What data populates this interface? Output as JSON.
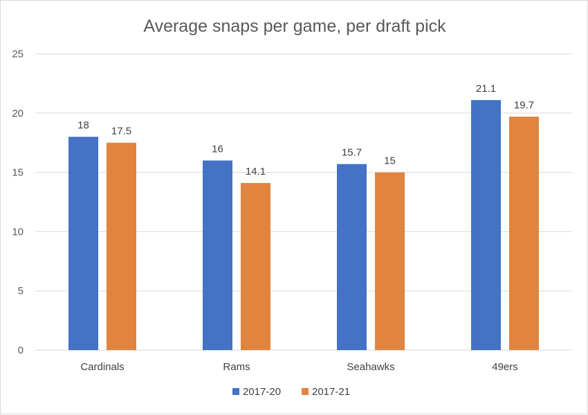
{
  "chart_data": {
    "type": "bar",
    "title": "Average snaps per game, per draft pick",
    "xlabel": "",
    "ylabel": "",
    "categories": [
      "Cardinals",
      "Rams",
      "Seahawks",
      "49ers"
    ],
    "series": [
      {
        "name": "2017-20",
        "values": [
          18,
          16,
          15.7,
          21.1
        ],
        "labels": [
          "18",
          "16",
          "15.7",
          "21.1"
        ],
        "color": "#4472c4"
      },
      {
        "name": "2017-21",
        "values": [
          17.5,
          14.1,
          15,
          19.7
        ],
        "labels": [
          "17.5",
          "14.1",
          "15",
          "19.7"
        ],
        "color": "#e0843f"
      }
    ],
    "ylim": [
      0,
      25
    ],
    "yticks": [
      0,
      5,
      10,
      15,
      20,
      25
    ],
    "ytick_labels": [
      "0",
      "5",
      "10",
      "15",
      "20",
      "25"
    ],
    "grid": true,
    "gridline_color": "#d9d9d9",
    "legend_position": "bottom"
  }
}
